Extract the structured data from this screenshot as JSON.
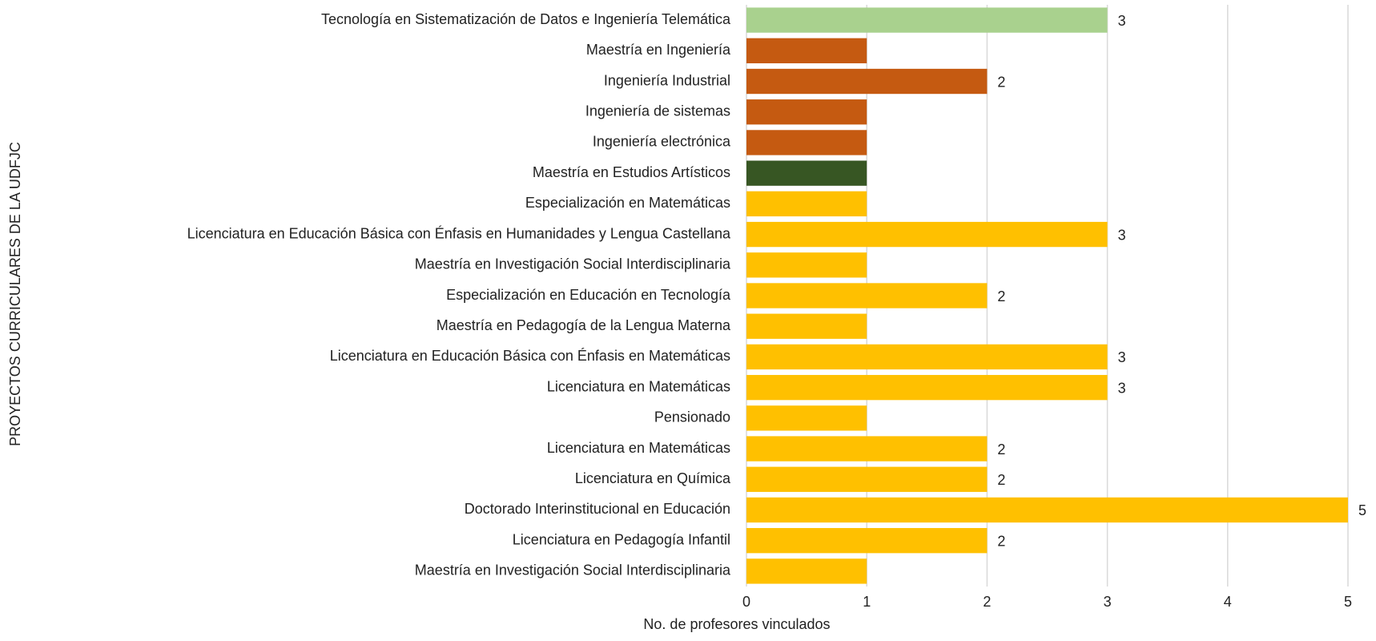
{
  "chart_data": {
    "type": "barh",
    "xlabel": "No. de profesores vinculados",
    "ylabel": "PROYECTOS CURRICULARES DE LA UDFJC",
    "categories": [
      "Tecnología en Sistematización de Datos e Ingeniería Telemática",
      "Maestría en Ingeniería",
      "Ingeniería Industrial",
      "Ingeniería de sistemas",
      "Ingeniería electrónica",
      "Maestría en Estudios Artísticos",
      "Especialización en Matemáticas",
      "Licenciatura en Educación Básica con Énfasis en Humanidades y Lengua Castellana",
      "Maestría en Investigación Social Interdisciplinaria",
      "Especialización en Educación en Tecnología",
      "Maestría en Pedagogía de la Lengua Materna",
      "Licenciatura en Educación Básica con Énfasis en Matemáticas",
      "Licenciatura en Matemáticas",
      "Pensionado",
      "Licenciatura en Matemáticas",
      "Licenciatura en Química",
      "Doctorado Interinstitucional en Educación",
      "Licenciatura en Pedagogía Infantil",
      "Maestría en Investigación Social Interdisciplinaria"
    ],
    "values": [
      3,
      1,
      2,
      1,
      1,
      1,
      1,
      3,
      1,
      2,
      1,
      3,
      3,
      1,
      2,
      2,
      5,
      2,
      1
    ],
    "value_labels": [
      "3",
      null,
      "2",
      null,
      null,
      null,
      null,
      "3",
      null,
      "2",
      null,
      "3",
      "3",
      null,
      "2",
      "2",
      "5",
      "2",
      null
    ],
    "colors": [
      "#a9d18e",
      "#c55a11",
      "#c55a11",
      "#c55a11",
      "#c55a11",
      "#375623",
      "#ffc000",
      "#ffc000",
      "#ffc000",
      "#ffc000",
      "#ffc000",
      "#ffc000",
      "#ffc000",
      "#ffc000",
      "#ffc000",
      "#ffc000",
      "#ffc000",
      "#ffc000",
      "#ffc000"
    ],
    "xlim": [
      0,
      5
    ],
    "xticks": [
      0,
      1,
      2,
      3,
      4,
      5
    ],
    "grid": true
  }
}
